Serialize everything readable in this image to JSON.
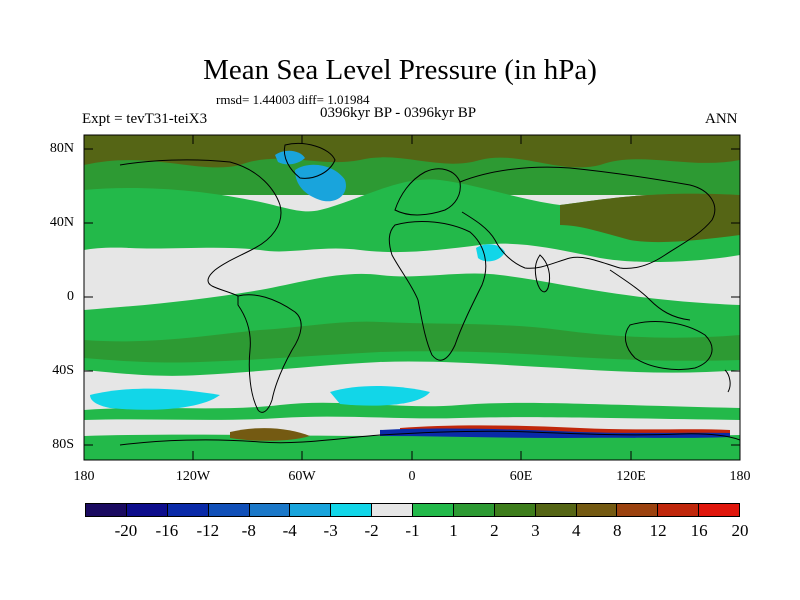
{
  "title": "Mean Sea Level Pressure (in hPa)",
  "stats": "rmsd= 1.44003 diff= 1.01984",
  "experiment": "Expt = tevT31-teiX3",
  "period": "0396kyr BP - 0396kyr BP",
  "season": "ANN",
  "lat_labels": [
    "80N",
    "40N",
    "0",
    "40S",
    "80S"
  ],
  "lon_labels": [
    "180",
    "120W",
    "60W",
    "0",
    "60E",
    "120E",
    "180"
  ],
  "colorbar": {
    "colors": [
      "#1a0a60",
      "#0d0d8c",
      "#0a2aa8",
      "#1150b8",
      "#1b78c8",
      "#19a4dc",
      "#12d6e8",
      "#e6e6e6",
      "#23b94a",
      "#2d9a33",
      "#3e7d1c",
      "#556515",
      "#745a12",
      "#9b420f",
      "#c0270b",
      "#e0160c"
    ],
    "labels": [
      "-20",
      "-16",
      "-12",
      "-8",
      "-4",
      "-3",
      "-2",
      "-1",
      "1",
      "2",
      "3",
      "4",
      "8",
      "12",
      "16",
      "20"
    ]
  },
  "colors": {
    "neutral": "#e6e6e6",
    "light_green": "#23b94a",
    "mid_green": "#2d9a33",
    "dark_green": "#556515",
    "cyan": "#12d6e8",
    "light_blue": "#19a4dc",
    "blue": "#0a2aa8",
    "brown": "#745a12",
    "red": "#c0270b"
  }
}
